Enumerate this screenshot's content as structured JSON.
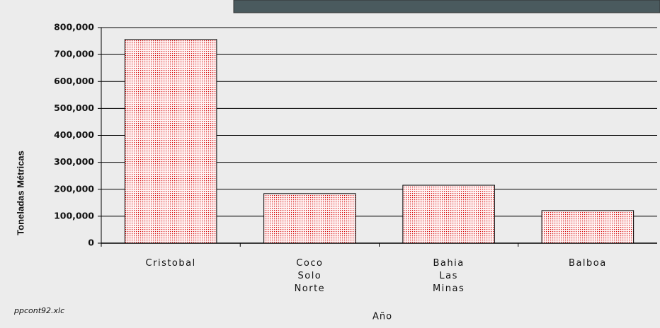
{
  "chart_data": {
    "type": "bar",
    "y_axis_label": "Toneladas Métricas",
    "x_axis_label": "Año",
    "source_note": "ppcont92.xlc",
    "categories": [
      "Cristobal",
      "Coco\nSolo\nNorte",
      "Bahia\nLas\nMinas",
      "Balboa"
    ],
    "values": [
      756000,
      184000,
      215000,
      121000
    ],
    "color": "#d40000",
    "ylim": [
      0,
      800000
    ],
    "yticks": [
      0,
      {
        "value": 100000,
        "label": "100,000"
      },
      {
        "value": 200000,
        "label": "200,000"
      },
      {
        "value": 300000,
        "label": "300,000"
      },
      {
        "value": 400000,
        "label": "400,000"
      },
      {
        "value": 500000,
        "label": "500,000"
      },
      {
        "value": 600000,
        "label": "600,000"
      },
      {
        "value": 700000,
        "label": "700,000"
      },
      {
        "value": 800000,
        "label": "800,000"
      }
    ],
    "grid": true
  }
}
